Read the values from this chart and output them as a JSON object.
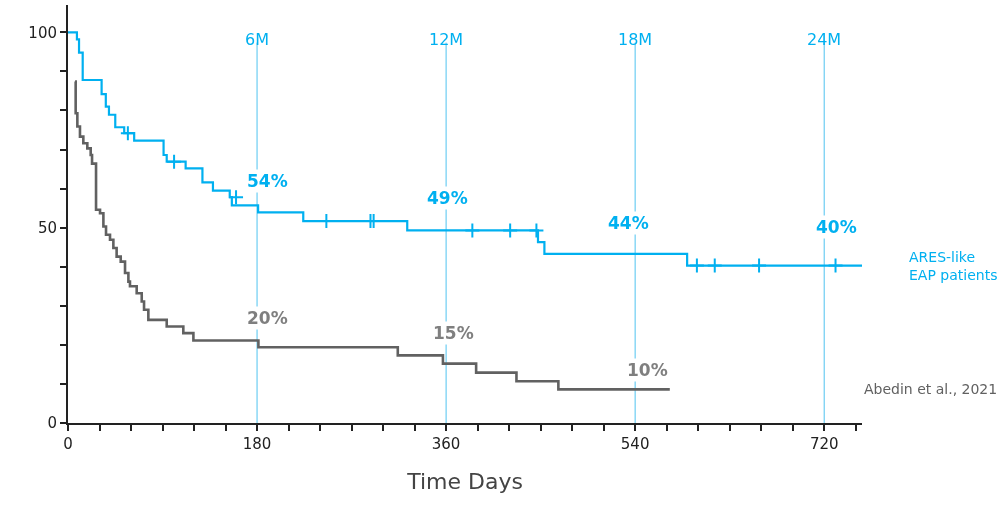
{
  "chart_data": {
    "type": "step",
    "xlabel": "Time Days",
    "xlim": [
      0,
      756
    ],
    "ylim": [
      0,
      107
    ],
    "xticks": [
      0,
      {
        "value": 30,
        "label": null
      },
      {
        "value": 60,
        "label": null
      },
      {
        "value": 90,
        "label": null
      },
      {
        "value": 120,
        "label": null
      },
      {
        "value": 150,
        "label": null
      },
      180,
      {
        "value": 210,
        "label": null
      },
      {
        "value": 240,
        "label": null
      },
      {
        "value": 270,
        "label": null
      },
      {
        "value": 300,
        "label": null
      },
      {
        "value": 330,
        "label": null
      },
      360,
      {
        "value": 390,
        "label": null
      },
      {
        "value": 420,
        "label": null
      },
      {
        "value": 450,
        "label": null
      },
      {
        "value": 480,
        "label": null
      },
      {
        "value": 510,
        "label": null
      },
      540,
      {
        "value": 570,
        "label": null
      },
      {
        "value": 600,
        "label": null
      },
      {
        "value": 630,
        "label": null
      },
      {
        "value": 660,
        "label": null
      },
      {
        "value": 690,
        "label": null
      },
      720,
      {
        "value": 750,
        "label": null
      }
    ],
    "yticks": [
      0,
      {
        "value": 10,
        "label": null
      },
      {
        "value": 20,
        "label": null
      },
      {
        "value": 30,
        "label": null
      },
      {
        "value": 40,
        "label": null
      },
      50,
      {
        "value": 60,
        "label": null
      },
      {
        "value": 70,
        "label": null
      },
      {
        "value": 80,
        "label": null
      },
      {
        "value": 90,
        "label": null
      },
      100
    ],
    "grid": false,
    "series": [
      {
        "name": "ARES-like\nEAP patients",
        "color": "#00b0f0",
        "x": [
          0,
          8.5,
          10.5,
          14,
          32,
          36,
          39,
          45,
          53.5,
          63,
          91,
          94,
          112,
          128,
          138,
          154,
          156,
          181,
          224,
          323,
          447.5,
          453.6,
          589.5,
          756
        ],
        "values": [
          100,
          98.2,
          94.8,
          87.8,
          84.2,
          81,
          78.9,
          75.7,
          74.2,
          72.3,
          68.6,
          66.9,
          65.2,
          61.6,
          59.5,
          57.8,
          55.7,
          53.9,
          51.7,
          49.3,
          46.3,
          43.3,
          40.3,
          40.3
        ]
      },
      {
        "type": "scatter",
        "marker": "cross",
        "color": "#00b0f0",
        "x": [
          57,
          101,
          160,
          246,
          288,
          291,
          385,
          421,
          446,
          598.8,
          615.8,
          658,
          730.8
        ],
        "values": [
          74.2,
          66.9,
          57.8,
          51.7,
          51.7,
          51.7,
          49.3,
          49.3,
          49.3,
          40.3,
          40.3,
          40.3,
          40.3
        ]
      },
      {
        "name": "Abedin et al., 2021",
        "color": "#616161",
        "x": [
          6.7,
          7.3,
          8.9,
          11.4,
          14.6,
          18.4,
          21.6,
          22.9,
          26.7,
          30.5,
          33.7,
          36.2,
          40,
          43.2,
          46.3,
          50.2,
          54.3,
          57.5,
          59,
          65.4,
          70.2,
          72.4,
          76.5,
          94,
          109.8,
          119.4,
          181.3,
          314,
          357,
          388.6,
          427,
          466.9,
          573
        ],
        "values": [
          87.4,
          79.3,
          75.9,
          73.3,
          71.6,
          70.3,
          68.6,
          66.4,
          54.6,
          53.7,
          50.3,
          48.2,
          46.9,
          44.8,
          42.6,
          41.3,
          38.4,
          36.2,
          35,
          33.2,
          31.1,
          29,
          26.4,
          24.7,
          23,
          21.1,
          19.4,
          17.3,
          15.2,
          12.9,
          10.7,
          8.6,
          8.6
        ]
      }
    ],
    "ref_lines": [
      {
        "axis": "x",
        "value": 180,
        "label": "6M",
        "color": "#4fc3f0"
      },
      {
        "axis": "x",
        "value": 360,
        "label": "12M",
        "color": "#4fc3f0"
      },
      {
        "axis": "x",
        "value": 540,
        "label": "18M",
        "color": "#4fc3f0"
      },
      {
        "axis": "x",
        "value": 720,
        "label": "24M",
        "color": "#4fc3f0"
      }
    ],
    "annotations": [
      {
        "text": "54%",
        "x": 190,
        "y": 62
      },
      {
        "text": "49%",
        "x": 361,
        "y": 57.5
      },
      {
        "text": "44%",
        "x": 534,
        "y": 51.2
      },
      {
        "text": "40%",
        "x": 732,
        "y": 50.1
      },
      {
        "text": "20%",
        "x": 190,
        "y": 27
      },
      {
        "text": "15%",
        "x": 367,
        "y": 23
      },
      {
        "text": "10%",
        "x": 552,
        "y": 13.6
      }
    ]
  }
}
